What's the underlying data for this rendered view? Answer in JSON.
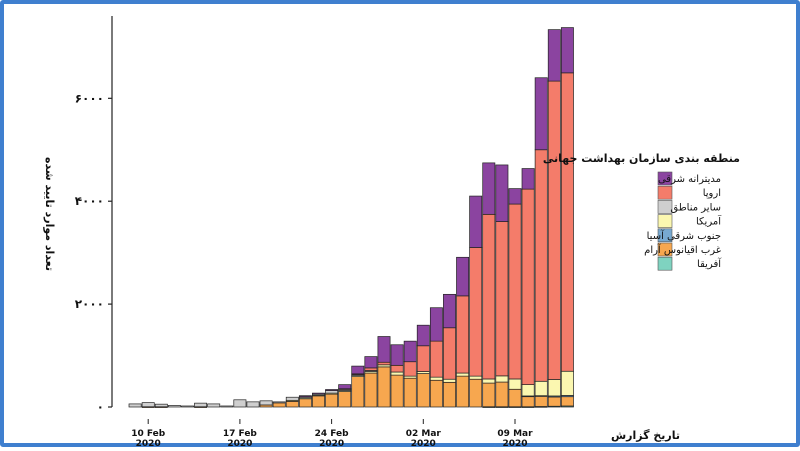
{
  "chart_data": {
    "type": "bar",
    "stacked": true,
    "xlabel": "تاریخ گزارش",
    "ylabel": "تعداد موارد تایید شده",
    "ylim": [
      0,
      7600
    ],
    "y_ticks": [
      {
        "value": 0,
        "label": "۰"
      },
      {
        "value": 2000,
        "label": "۲۰۰۰"
      },
      {
        "value": 4000,
        "label": "۴۰۰۰"
      },
      {
        "value": 6000,
        "label": "۶۰۰۰"
      }
    ],
    "x_ticks": [
      {
        "date": "10 Feb",
        "year": "2020",
        "index": 1
      },
      {
        "date": "17 Feb",
        "year": "2020",
        "index": 8
      },
      {
        "date": "24 Feb",
        "year": "2020",
        "index": 15
      },
      {
        "date": "02 Mar",
        "year": "2020",
        "index": 22
      },
      {
        "date": "09 Mar",
        "year": "2020",
        "index": 29
      }
    ],
    "grid": false,
    "legend": {
      "title": "منطقه بندی سازمان بهداشت جهانی",
      "position": "right"
    },
    "categories": [
      "09 Feb",
      "10 Feb",
      "11 Feb",
      "12 Feb",
      "13 Feb",
      "14 Feb",
      "15 Feb",
      "16 Feb",
      "17 Feb",
      "18 Feb",
      "19 Feb",
      "20 Feb",
      "21 Feb",
      "22 Feb",
      "23 Feb",
      "24 Feb",
      "25 Feb",
      "26 Feb",
      "27 Feb",
      "28 Feb",
      "29 Feb",
      "01 Mar",
      "02 Mar",
      "03 Mar",
      "04 Mar",
      "05 Mar",
      "06 Mar",
      "07 Mar",
      "08 Mar",
      "09 Mar",
      "10 Mar",
      "11 Mar",
      "12 Mar",
      "13 Mar"
    ],
    "series": [
      {
        "name": "آفریقا",
        "color": "#7fd3c0",
        "values": [
          0,
          0,
          0,
          0,
          0,
          0,
          0,
          0,
          0,
          0,
          0,
          0,
          0,
          0,
          0,
          0,
          0,
          0,
          0,
          0,
          0,
          0,
          0,
          0,
          0,
          0,
          0,
          5,
          5,
          5,
          5,
          10,
          15,
          20
        ]
      },
      {
        "name": "غرب اقیانوس آرام",
        "color": "#f7a74f",
        "values": [
          0,
          5,
          5,
          0,
          0,
          5,
          0,
          0,
          0,
          0,
          40,
          80,
          110,
          160,
          220,
          250,
          300,
          590,
          660,
          780,
          620,
          560,
          650,
          520,
          480,
          600,
          540,
          460,
          480,
          340,
          200,
          200,
          180,
          180
        ]
      },
      {
        "name": "جنوب شرقی آسیا",
        "color": "#77a9d1",
        "values": [
          0,
          0,
          0,
          0,
          0,
          0,
          0,
          0,
          0,
          0,
          0,
          0,
          0,
          0,
          0,
          0,
          0,
          0,
          0,
          0,
          0,
          0,
          0,
          0,
          0,
          0,
          0,
          0,
          0,
          0,
          10,
          10,
          20,
          25
        ]
      },
      {
        "name": "آمریکا",
        "color": "#fbf7b0",
        "values": [
          0,
          0,
          0,
          0,
          0,
          0,
          0,
          0,
          0,
          0,
          0,
          0,
          20,
          20,
          10,
          20,
          20,
          20,
          30,
          40,
          60,
          40,
          40,
          60,
          60,
          60,
          60,
          80,
          120,
          200,
          220,
          280,
          320,
          470
        ]
      },
      {
        "name": "سایر مناطق",
        "color": "#cfcfcf",
        "values": [
          60,
          80,
          50,
          30,
          20,
          70,
          60,
          20,
          140,
          100,
          80,
          20,
          60,
          20,
          20,
          50,
          30,
          20,
          20,
          0,
          0,
          0,
          0,
          0,
          0,
          0,
          0,
          0,
          0,
          0,
          0,
          0,
          0,
          0
        ]
      },
      {
        "name": "اروپا",
        "color": "#f47c6a",
        "values": [
          0,
          0,
          0,
          0,
          0,
          0,
          0,
          0,
          0,
          0,
          0,
          0,
          0,
          0,
          0,
          0,
          5,
          15,
          50,
          50,
          130,
          280,
          500,
          700,
          1000,
          1500,
          2500,
          3200,
          3000,
          3400,
          3800,
          4500,
          5800,
          5800
        ]
      },
      {
        "name": "مدیترانه شرقی",
        "color": "#8b44a0",
        "values": [
          0,
          0,
          0,
          0,
          0,
          0,
          0,
          0,
          0,
          0,
          0,
          0,
          0,
          20,
          20,
          20,
          80,
          150,
          220,
          500,
          400,
          400,
          400,
          650,
          650,
          750,
          1000,
          1000,
          1100,
          300,
          400,
          1400,
          1000,
          880
        ]
      }
    ],
    "legend_order": [
      "مدیترانه شرقی",
      "اروپا",
      "سایر مناطق",
      "آمریکا",
      "جنوب شرقی آسیا",
      "غرب اقیانوس آرام",
      "آفریقا"
    ]
  }
}
